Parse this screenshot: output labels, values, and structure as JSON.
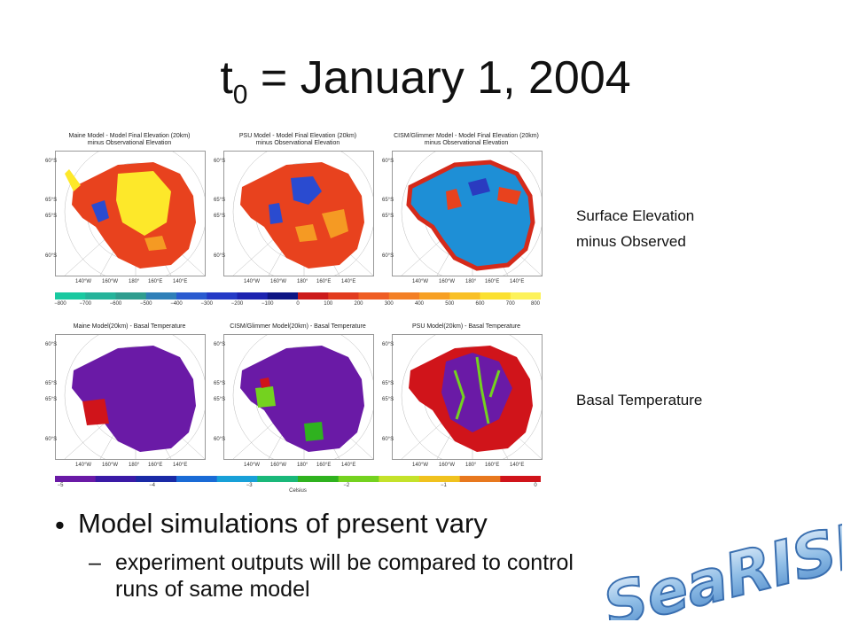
{
  "title": {
    "main": "t",
    "sub": "0",
    "rest": " = January 1, 2004"
  },
  "top_row": {
    "panels": [
      {
        "title1": "Maine Model - Model Final Elevation (20km)",
        "title2": "minus Observational Elevation"
      },
      {
        "title1": "PSU Model - Model Final Elevation (20km)",
        "title2": "minus Observational Elevation"
      },
      {
        "title1": "CISM/Glimmer Model - Model Final Elevation (20km)",
        "title2": "minus Observational Elevation"
      }
    ],
    "colorbar_ticks": [
      "−800",
      "−700",
      "−600",
      "−500",
      "−400",
      "−300",
      "−200",
      "−100",
      "0",
      "100",
      "200",
      "300",
      "400",
      "500",
      "600",
      "700",
      "800"
    ],
    "colorbar_colors": [
      "#19c9a0",
      "#25b39a",
      "#2f9d8f",
      "#2f7fb8",
      "#2a5bd0",
      "#243ac6",
      "#1c23b0",
      "#0e1584",
      "#cc1a1a",
      "#e23b1e",
      "#ef5d23",
      "#f37f25",
      "#f7a024",
      "#f9c026",
      "#fbe030",
      "#fdf25a"
    ]
  },
  "bottom_row": {
    "panels": [
      {
        "title1": "Maine Model(20km) - Basal Temperature",
        "title2": ""
      },
      {
        "title1": "CISM/Glimmer Model(20km) - Basal Temperature",
        "title2": ""
      },
      {
        "title1": "PSU Model(20km) - Basal Temperature",
        "title2": ""
      }
    ],
    "colorbar_ticks": [
      "−5",
      "−4",
      "−3",
      "−2",
      "−1",
      "0"
    ],
    "colorbar_label": "Celsius",
    "colorbar_colors": [
      "#6a1aa6",
      "#3a1aa6",
      "#1a2aa6",
      "#1a6bd6",
      "#18a0d8",
      "#1ab87a",
      "#2fb21f",
      "#74d21f",
      "#c4e22a",
      "#f0c21e",
      "#e8781e",
      "#d0141a"
    ]
  },
  "lat_labels": [
    "60°S",
    "65°S",
    "65°S",
    "60°S"
  ],
  "lon_labels": [
    "140°W",
    "160°W",
    "180°",
    "160°E",
    "140°E"
  ],
  "side_labels": {
    "top_line1": "Surface Elevation",
    "top_line2": "minus Observed",
    "bottom": "Basal Temperature"
  },
  "bullets": {
    "main": "Model simulations of present vary",
    "sub": "experiment outputs will be compared to control runs of same model"
  },
  "logo": {
    "text": "SeaRISE"
  }
}
